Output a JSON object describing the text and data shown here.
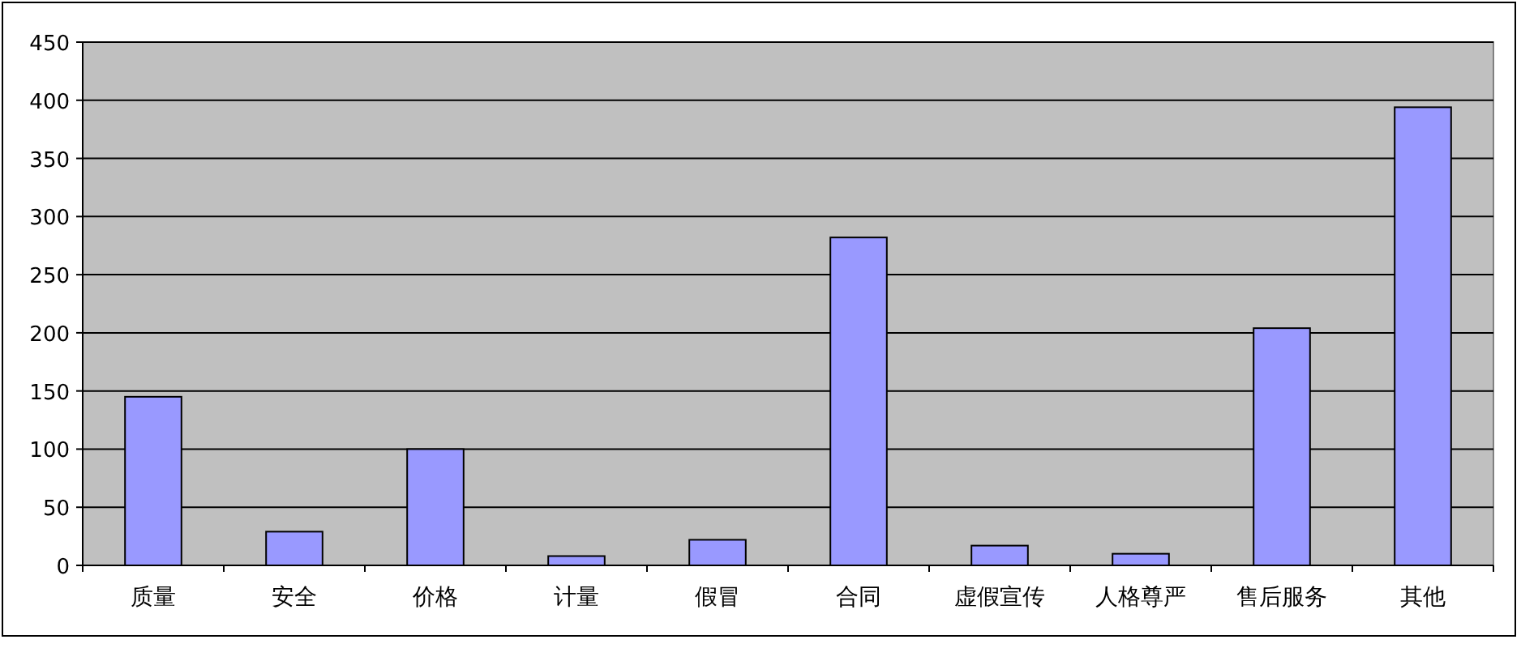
{
  "chart_data": {
    "type": "bar",
    "categories": [
      "质量",
      "安全",
      "价格",
      "计量",
      "假冒",
      "合同",
      "虚假宣传",
      "人格尊严",
      "售后服务",
      "其他"
    ],
    "values": [
      145,
      29,
      100,
      8,
      22,
      282,
      17,
      10,
      204,
      394
    ],
    "color": "#9999ff",
    "ylim": [
      0,
      450
    ],
    "yticks": [
      0,
      50,
      100,
      150,
      200,
      250,
      300,
      350,
      400,
      450
    ],
    "grid": "y"
  }
}
